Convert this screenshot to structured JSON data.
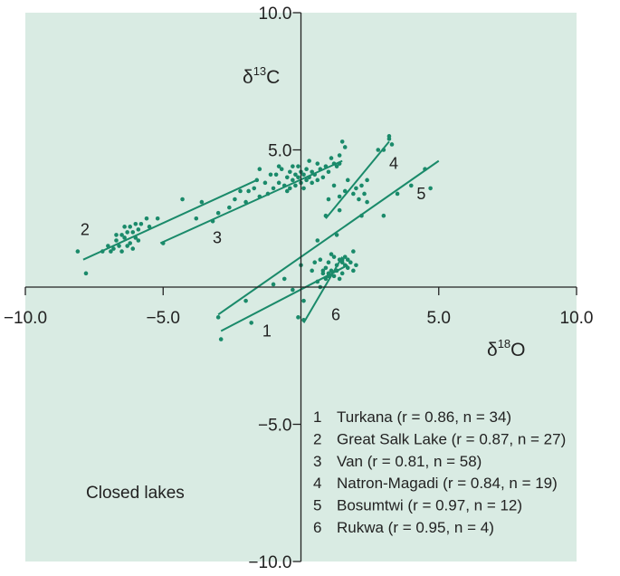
{
  "chart_data": {
    "type": "scatter",
    "title": "",
    "background_color": "#d9ebe3",
    "point_color": "#1a8a6a",
    "xlabel": "δ18O",
    "ylabel": "δ13C",
    "xlim": [
      -10,
      10
    ],
    "ylim": [
      -10,
      10
    ],
    "x_ticks": [
      "−10.0",
      "−5.0",
      "5.0",
      "10.0"
    ],
    "x_tick_values": [
      -10,
      -5,
      5,
      10
    ],
    "y_ticks": [
      "10.0",
      "5.0",
      "−5.0",
      "−10.0"
    ],
    "y_tick_values": [
      10,
      5,
      -5,
      -10
    ],
    "grid": false,
    "annotation": "Closed lakes",
    "series": [
      {
        "name": "Turkana",
        "number": "1",
        "r": "0.86",
        "n": "34",
        "legend": "Turkana (r = 0.86, n = 34)",
        "fit": [
          [
            -2.9,
            -1.6
          ],
          [
            1.7,
            0.8
          ]
        ],
        "label_at": [
          -1.4,
          -1.8
        ],
        "points": [
          [
            -2.9,
            -1.9
          ],
          [
            -1.8,
            -1.3
          ],
          [
            -0.3,
            -0.1
          ],
          [
            -0.1,
            -1.1
          ],
          [
            0.1,
            -0.5
          ],
          [
            0.6,
            0.2
          ],
          [
            0.8,
            0.5
          ],
          [
            0.9,
            0.7
          ],
          [
            1.0,
            0.9
          ],
          [
            1.1,
            0.6
          ],
          [
            1.2,
            0.4
          ],
          [
            1.3,
            0.8
          ],
          [
            1.4,
            1.0
          ],
          [
            1.5,
            0.5
          ],
          [
            1.6,
            1.1
          ],
          [
            1.7,
            0.7
          ],
          [
            0.5,
            0.9
          ],
          [
            0.7,
            1.0
          ],
          [
            1.8,
            0.9
          ],
          [
            1.9,
            1.3
          ],
          [
            2.0,
            0.8
          ],
          [
            0.9,
            0.3
          ],
          [
            1.2,
            1.1
          ],
          [
            1.4,
            0.3
          ],
          [
            1.6,
            0.8
          ],
          [
            0.8,
            0.6
          ],
          [
            1.0,
            0.4
          ],
          [
            1.3,
            0.6
          ],
          [
            1.5,
            0.9
          ],
          [
            -0.6,
            0.3
          ],
          [
            0.4,
            0.6
          ],
          [
            1.1,
            1.2
          ],
          [
            1.7,
            1.0
          ],
          [
            1.9,
            0.6
          ]
        ]
      },
      {
        "name": "Great Salk Lake",
        "number": "2",
        "r": "0.87",
        "n": "27",
        "legend": "Great Salk Lake (r = 0.87, n = 27)",
        "fit": [
          [
            -7.9,
            1.0
          ],
          [
            -1.6,
            3.9
          ]
        ],
        "label_at": [
          -8.0,
          1.9
        ],
        "points": [
          [
            -8.1,
            1.3
          ],
          [
            -7.8,
            0.5
          ],
          [
            -7.2,
            1.3
          ],
          [
            -7.0,
            1.5
          ],
          [
            -6.8,
            1.4
          ],
          [
            -6.7,
            1.7
          ],
          [
            -6.6,
            1.5
          ],
          [
            -6.5,
            1.3
          ],
          [
            -6.4,
            1.8
          ],
          [
            -6.3,
            2.0
          ],
          [
            -6.3,
            1.5
          ],
          [
            -6.2,
            2.2
          ],
          [
            -6.2,
            1.6
          ],
          [
            -6.1,
            2.0
          ],
          [
            -6.0,
            1.8
          ],
          [
            -6.0,
            2.3
          ],
          [
            -5.9,
            1.7
          ],
          [
            -5.8,
            2.3
          ],
          [
            -5.6,
            2.5
          ],
          [
            -5.5,
            2.2
          ],
          [
            -5.2,
            2.5
          ],
          [
            -6.7,
            1.9
          ],
          [
            -6.9,
            1.3
          ],
          [
            -6.4,
            2.2
          ],
          [
            -6.1,
            1.4
          ],
          [
            -5.9,
            2.1
          ],
          [
            -6.5,
            1.9
          ]
        ]
      },
      {
        "name": "Van",
        "number": "3",
        "r": "0.81",
        "n": "58",
        "legend": "Van (r = 0.81, n = 58)",
        "fit": [
          [
            -5.1,
            1.6
          ],
          [
            1.5,
            4.6
          ]
        ],
        "label_at": [
          -3.2,
          1.6
        ],
        "points": [
          [
            -5.0,
            1.6
          ],
          [
            -4.3,
            3.2
          ],
          [
            -3.8,
            2.5
          ],
          [
            -3.6,
            3.1
          ],
          [
            -3.2,
            2.4
          ],
          [
            -3.0,
            2.7
          ],
          [
            -2.6,
            2.9
          ],
          [
            -2.2,
            3.5
          ],
          [
            -2.0,
            3.1
          ],
          [
            -1.7,
            3.6
          ],
          [
            -1.5,
            4.3
          ],
          [
            -1.5,
            3.3
          ],
          [
            -1.3,
            3.8
          ],
          [
            -1.2,
            3.4
          ],
          [
            -1.1,
            4.1
          ],
          [
            -1.0,
            3.6
          ],
          [
            -0.9,
            4.1
          ],
          [
            -0.8,
            3.8
          ],
          [
            -0.7,
            4.3
          ],
          [
            -0.6,
            3.7
          ],
          [
            -0.5,
            3.5
          ],
          [
            -0.5,
            4.0
          ],
          [
            -0.4,
            4.2
          ],
          [
            -0.4,
            3.6
          ],
          [
            -0.3,
            4.4
          ],
          [
            -0.3,
            3.9
          ],
          [
            -0.2,
            4.1
          ],
          [
            -0.2,
            3.7
          ],
          [
            -0.1,
            4.4
          ],
          [
            -0.1,
            4.0
          ],
          [
            0.0,
            3.8
          ],
          [
            0.0,
            4.2
          ],
          [
            0.1,
            4.1
          ],
          [
            0.1,
            3.6
          ],
          [
            0.2,
            4.3
          ],
          [
            0.2,
            3.9
          ],
          [
            0.3,
            4.0
          ],
          [
            0.3,
            4.6
          ],
          [
            0.4,
            3.8
          ],
          [
            0.4,
            4.2
          ],
          [
            0.5,
            4.1
          ],
          [
            0.6,
            4.5
          ],
          [
            0.6,
            3.9
          ],
          [
            0.7,
            4.3
          ],
          [
            0.8,
            4.0
          ],
          [
            0.9,
            4.4
          ],
          [
            1.0,
            4.2
          ],
          [
            1.1,
            4.7
          ],
          [
            1.2,
            4.5
          ],
          [
            1.3,
            4.4
          ],
          [
            1.4,
            4.8
          ],
          [
            1.5,
            5.3
          ],
          [
            1.6,
            5.1
          ],
          [
            1.4,
            4.5
          ],
          [
            -1.6,
            3.9
          ],
          [
            -0.8,
            4.4
          ],
          [
            -2.4,
            3.2
          ],
          [
            -1.9,
            3.5
          ]
        ]
      },
      {
        "name": "Natron-Magadi",
        "number": "4",
        "r": "0.84",
        "n": "19",
        "legend": "Natron-Magadi (r = 0.84, n = 19)",
        "fit": [
          [
            0.9,
            2.5
          ],
          [
            3.2,
            5.3
          ]
        ],
        "label_at": [
          3.2,
          4.3
        ],
        "points": [
          [
            0.9,
            2.6
          ],
          [
            1.0,
            3.2
          ],
          [
            1.2,
            3.7
          ],
          [
            1.4,
            3.3
          ],
          [
            1.4,
            2.8
          ],
          [
            1.6,
            3.5
          ],
          [
            1.7,
            3.9
          ],
          [
            1.9,
            3.4
          ],
          [
            2.0,
            3.6
          ],
          [
            2.1,
            3.2
          ],
          [
            2.2,
            3.7
          ],
          [
            2.3,
            3.4
          ],
          [
            2.4,
            3.9
          ],
          [
            2.4,
            3.1
          ],
          [
            2.8,
            5.0
          ],
          [
            3.0,
            5.0
          ],
          [
            3.2,
            5.5
          ],
          [
            3.3,
            5.2
          ],
          [
            3.2,
            5.4
          ]
        ]
      },
      {
        "name": "Bosumtwi",
        "number": "5",
        "r": "0.97",
        "n": "12",
        "legend": "Bosumtwi (r = 0.97, n = 12)",
        "fit": [
          [
            -3.0,
            -1.0
          ],
          [
            5.0,
            4.6
          ]
        ],
        "label_at": [
          4.2,
          3.2
        ],
        "points": [
          [
            -3.0,
            -1.1
          ],
          [
            -2.0,
            -0.5
          ],
          [
            -1.0,
            0.1
          ],
          [
            0.0,
            0.8
          ],
          [
            0.6,
            1.7
          ],
          [
            1.3,
            1.9
          ],
          [
            2.2,
            2.6
          ],
          [
            3.0,
            2.6
          ],
          [
            3.5,
            3.4
          ],
          [
            4.0,
            3.7
          ],
          [
            4.5,
            4.3
          ],
          [
            4.7,
            3.6
          ]
        ]
      },
      {
        "name": "Rukwa",
        "number": "6",
        "r": "0.95",
        "n": "4",
        "legend": "Rukwa (r = 0.95, n = 4)",
        "fit": [
          [
            0.1,
            -1.3
          ],
          [
            1.5,
            1.1
          ]
        ],
        "label_at": [
          1.1,
          -1.2
        ],
        "points": [
          [
            0.1,
            -1.2
          ],
          [
            0.7,
            0.0
          ],
          [
            1.0,
            0.5
          ],
          [
            1.5,
            1.0
          ]
        ]
      }
    ]
  }
}
